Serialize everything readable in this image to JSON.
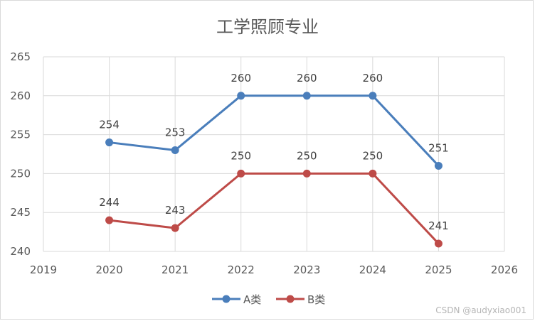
{
  "chart_data": {
    "type": "line",
    "title": "工学照顾专业",
    "xlabel": "",
    "ylabel": "",
    "xlim": [
      2019,
      2026
    ],
    "ylim": [
      240,
      265
    ],
    "x_ticks": [
      2019,
      2020,
      2021,
      2022,
      2023,
      2024,
      2025,
      2026
    ],
    "y_ticks": [
      240,
      245,
      250,
      255,
      260,
      265
    ],
    "x": [
      2020,
      2021,
      2022,
      2023,
      2024,
      2025
    ],
    "series": [
      {
        "name": "A类",
        "color": "#4a7ebb",
        "values": [
          254,
          253,
          260,
          260,
          260,
          251
        ]
      },
      {
        "name": "B类",
        "color": "#be4b48",
        "values": [
          244,
          243,
          250,
          250,
          250,
          241
        ]
      }
    ],
    "grid": true,
    "legend": "bottom",
    "data_labels": true
  },
  "watermark": "CSDN @audyxiao001"
}
